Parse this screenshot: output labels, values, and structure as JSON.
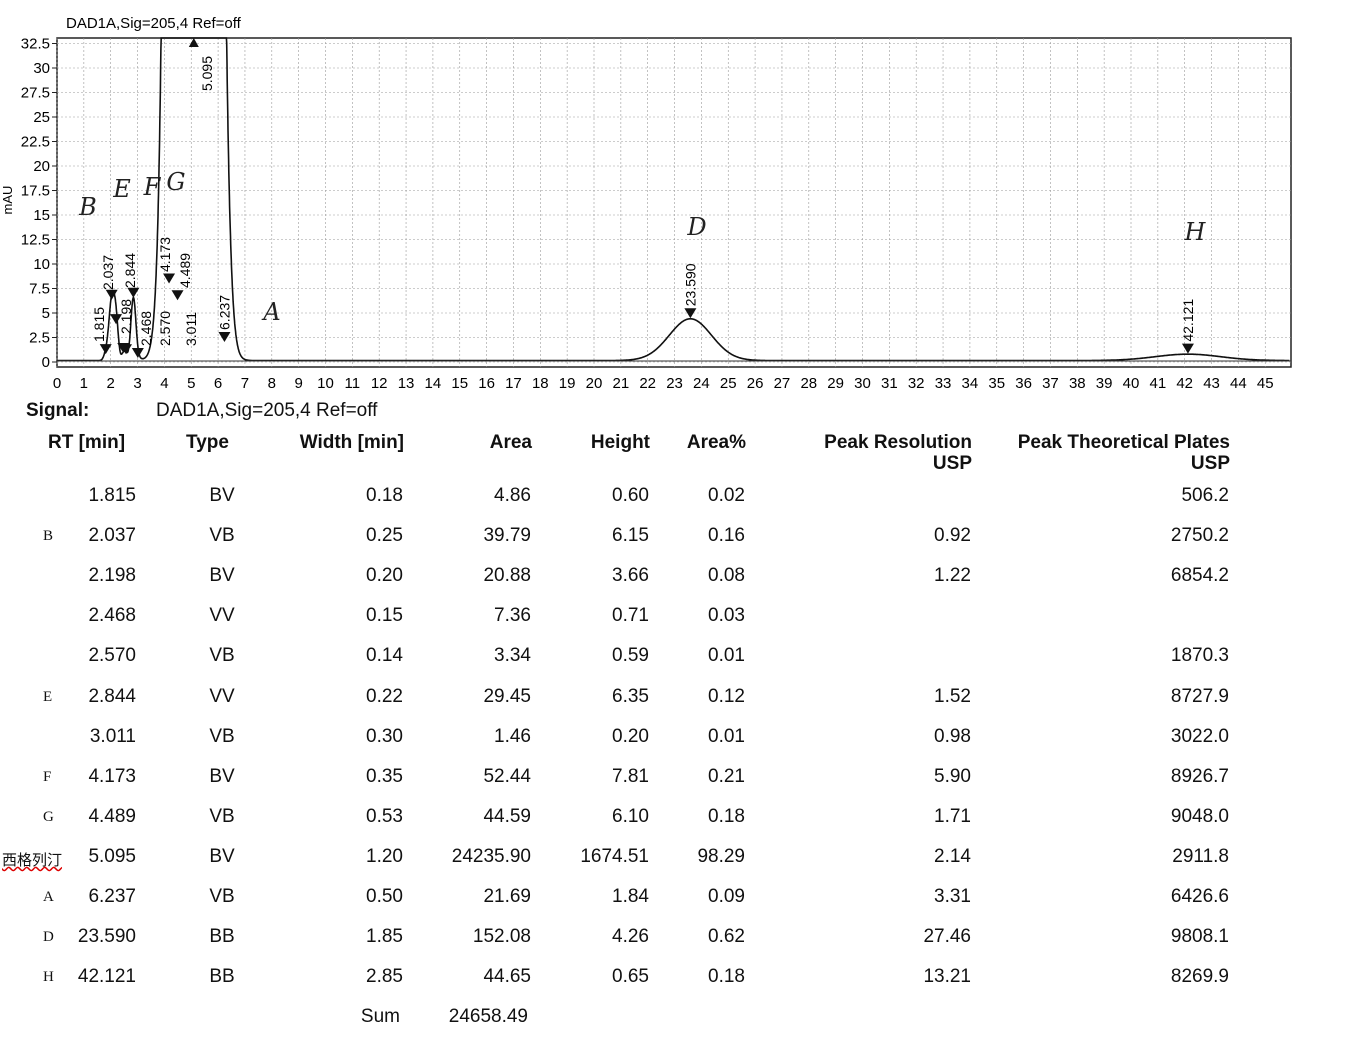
{
  "chart_data": {
    "type": "line",
    "title": "DAD1A,Sig=205,4   Ref=off",
    "ylabel": "mAU",
    "xlabel": "",
    "xlim": [
      0,
      45.9
    ],
    "ylim": [
      -0.5,
      33
    ],
    "xticks": [
      0,
      1,
      2,
      3,
      4,
      5,
      6,
      7,
      8,
      9,
      10,
      11,
      12,
      13,
      14,
      15,
      16,
      17,
      18,
      19,
      20,
      21,
      22,
      23,
      24,
      25,
      26,
      27,
      28,
      29,
      30,
      31,
      32,
      33,
      34,
      35,
      36,
      37,
      38,
      39,
      40,
      41,
      42,
      43,
      44,
      45
    ],
    "yticks": [
      "0",
      "2.5",
      "5",
      "7.5",
      "10",
      "12.5",
      "15",
      "17.5",
      "20",
      "22.5",
      "25",
      "27.5",
      "30",
      "32.5"
    ],
    "grid": true,
    "peak_labels": [
      "1.815",
      "2.037",
      "2.198",
      "2.468",
      "2.570",
      "2.844",
      "3.011",
      "4.173",
      "4.489",
      "5.095",
      "6.237",
      "23.590",
      "42.121"
    ],
    "annotations": [
      {
        "text": "B",
        "rt": 2.037
      },
      {
        "text": "E",
        "rt": 2.844
      },
      {
        "text": "F",
        "rt": 4.173
      },
      {
        "text": "G",
        "rt": 4.489
      },
      {
        "text": "A",
        "rt": 6.237
      },
      {
        "text": "D",
        "rt": 23.59
      },
      {
        "text": "H",
        "rt": 42.121
      }
    ]
  },
  "signal": {
    "label": "Signal:",
    "value": "DAD1A,Sig=205,4   Ref=off"
  },
  "table": {
    "headers": [
      "RT [min]",
      "Type",
      "Width [min]",
      "Area",
      "Height",
      "Area%",
      "Peak Resolution\nUSP",
      "Peak Theoretical Plates\nUSP"
    ],
    "header_res1": "Peak Resolution",
    "header_res2": "USP",
    "header_plates1": "Peak Theoretical Plates",
    "header_plates2": "USP",
    "rows": [
      {
        "tag": "",
        "rt": "1.815",
        "type": "BV",
        "width": "0.18",
        "area": "4.86",
        "height": "0.60",
        "pct": "0.02",
        "res": "",
        "plates": "506.2"
      },
      {
        "tag": "B",
        "rt": "2.037",
        "type": "VB",
        "width": "0.25",
        "area": "39.79",
        "height": "6.15",
        "pct": "0.16",
        "res": "0.92",
        "plates": "2750.2"
      },
      {
        "tag": "",
        "rt": "2.198",
        "type": "BV",
        "width": "0.20",
        "area": "20.88",
        "height": "3.66",
        "pct": "0.08",
        "res": "1.22",
        "plates": "6854.2"
      },
      {
        "tag": "",
        "rt": "2.468",
        "type": "VV",
        "width": "0.15",
        "area": "7.36",
        "height": "0.71",
        "pct": "0.03",
        "res": "",
        "plates": ""
      },
      {
        "tag": "",
        "rt": "2.570",
        "type": "VB",
        "width": "0.14",
        "area": "3.34",
        "height": "0.59",
        "pct": "0.01",
        "res": "",
        "plates": "1870.3"
      },
      {
        "tag": "E",
        "rt": "2.844",
        "type": "VV",
        "width": "0.22",
        "area": "29.45",
        "height": "6.35",
        "pct": "0.12",
        "res": "1.52",
        "plates": "8727.9"
      },
      {
        "tag": "",
        "rt": "3.011",
        "type": "VB",
        "width": "0.30",
        "area": "1.46",
        "height": "0.20",
        "pct": "0.01",
        "res": "0.98",
        "plates": "3022.0"
      },
      {
        "tag": "F",
        "rt": "4.173",
        "type": "BV",
        "width": "0.35",
        "area": "52.44",
        "height": "7.81",
        "pct": "0.21",
        "res": "5.90",
        "plates": "8926.7"
      },
      {
        "tag": "G",
        "rt": "4.489",
        "type": "VB",
        "width": "0.53",
        "area": "44.59",
        "height": "6.10",
        "pct": "0.18",
        "res": "1.71",
        "plates": "9048.0"
      },
      {
        "tag": "西格列汀",
        "rt": "5.095",
        "type": "BV",
        "width": "1.20",
        "area": "24235.90",
        "height": "1674.51",
        "pct": "98.29",
        "res": "2.14",
        "plates": "2911.8"
      },
      {
        "tag": "A",
        "rt": "6.237",
        "type": "VB",
        "width": "0.50",
        "area": "21.69",
        "height": "1.84",
        "pct": "0.09",
        "res": "3.31",
        "plates": "6426.6"
      },
      {
        "tag": "D",
        "rt": "23.590",
        "type": "BB",
        "width": "1.85",
        "area": "152.08",
        "height": "4.26",
        "pct": "0.62",
        "res": "27.46",
        "plates": "9808.1"
      },
      {
        "tag": "H",
        "rt": "42.121",
        "type": "BB",
        "width": "2.85",
        "area": "44.65",
        "height": "0.65",
        "pct": "0.18",
        "res": "13.21",
        "plates": "8269.9"
      }
    ],
    "sum_label": "Sum",
    "sum_area": "24658.49"
  }
}
